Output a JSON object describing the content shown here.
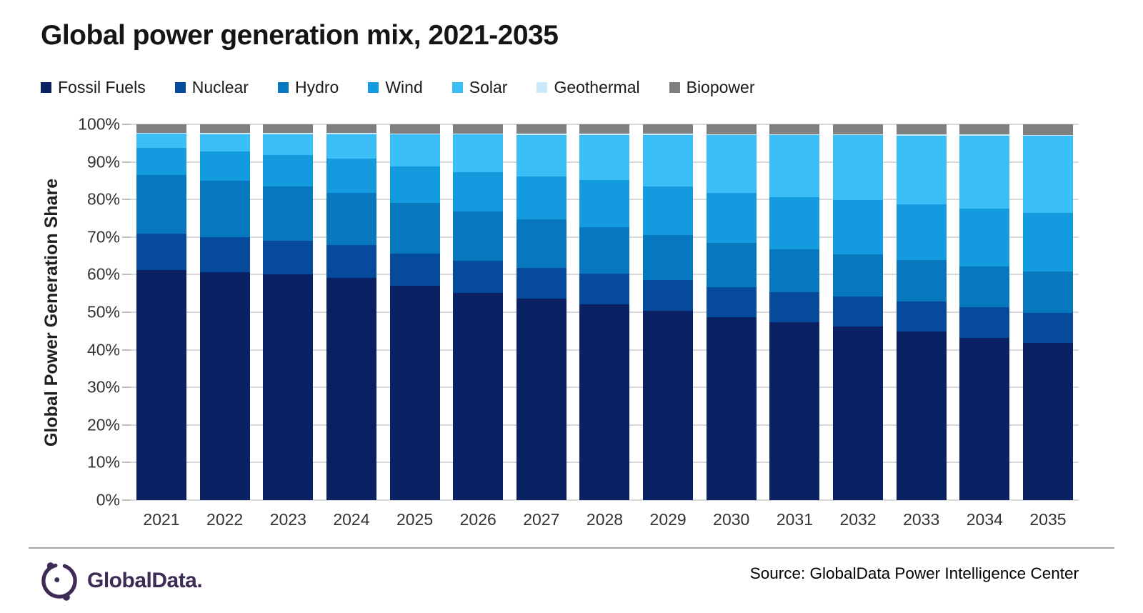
{
  "title": "Global power generation mix, 2021-2035",
  "y_axis_title": "Global Power Generation Share",
  "footer": {
    "logo_text": "GlobalData.",
    "source": "Source: GlobalData Power Intelligence Center"
  },
  "colors": {
    "fossil_fuels": "#0a2263",
    "nuclear": "#064a9c",
    "hydro": "#0778be",
    "wind": "#149ade",
    "solar": "#3bbdf5",
    "geothermal": "#cce9fa",
    "biopower": "#7f7f7f",
    "gridline": "#d9d9d9",
    "tick": "#bfbfbf",
    "divider": "#a8a8a8",
    "logo": "#3e2b56"
  },
  "chart_data": {
    "type": "bar",
    "subtype": "stacked-100",
    "unit": "%",
    "ylim": [
      0,
      100
    ],
    "grid": true,
    "legend_position": "top",
    "y_ticks": [
      "0%",
      "10%",
      "20%",
      "30%",
      "40%",
      "50%",
      "60%",
      "70%",
      "80%",
      "90%",
      "100%"
    ],
    "categories": [
      "2021",
      "2022",
      "2023",
      "2024",
      "2025",
      "2026",
      "2027",
      "2028",
      "2029",
      "2030",
      "2031",
      "2032",
      "2033",
      "2034",
      "2035"
    ],
    "series": [
      {
        "name": "Fossil Fuels",
        "color": "#0a2263",
        "values": [
          61.2,
          60.6,
          60.0,
          59.1,
          57.0,
          55.2,
          53.6,
          52.1,
          50.4,
          48.7,
          47.4,
          46.2,
          44.9,
          43.2,
          41.8
        ]
      },
      {
        "name": "Nuclear",
        "color": "#064a9c",
        "values": [
          9.8,
          9.4,
          9.1,
          8.8,
          8.6,
          8.4,
          8.2,
          8.1,
          8.1,
          8.0,
          8.0,
          8.0,
          8.0,
          8.1,
          8.1
        ]
      },
      {
        "name": "Hydro",
        "color": "#0778be",
        "values": [
          15.6,
          15.0,
          14.4,
          13.9,
          13.5,
          13.2,
          13.0,
          12.4,
          12.0,
          11.7,
          11.4,
          11.2,
          11.0,
          10.9,
          10.9
        ]
      },
      {
        "name": "Wind",
        "color": "#149ade",
        "values": [
          7.2,
          7.8,
          8.4,
          9.0,
          9.7,
          10.5,
          11.4,
          12.5,
          12.9,
          13.4,
          13.9,
          14.4,
          14.9,
          15.3,
          15.7
        ]
      },
      {
        "name": "Solar",
        "color": "#3bbdf5",
        "values": [
          3.7,
          4.6,
          5.5,
          6.6,
          8.5,
          10.0,
          11.0,
          12.1,
          13.8,
          15.3,
          16.4,
          17.3,
          18.2,
          19.5,
          20.4
        ]
      },
      {
        "name": "Geothermal",
        "color": "#cce9fa",
        "values": [
          0.3,
          0.3,
          0.3,
          0.3,
          0.3,
          0.3,
          0.3,
          0.3,
          0.3,
          0.3,
          0.3,
          0.3,
          0.3,
          0.3,
          0.3
        ]
      },
      {
        "name": "Biopower",
        "color": "#7f7f7f",
        "values": [
          2.2,
          2.3,
          2.3,
          2.3,
          2.4,
          2.4,
          2.5,
          2.5,
          2.5,
          2.6,
          2.6,
          2.6,
          2.7,
          2.7,
          2.8
        ]
      }
    ]
  }
}
